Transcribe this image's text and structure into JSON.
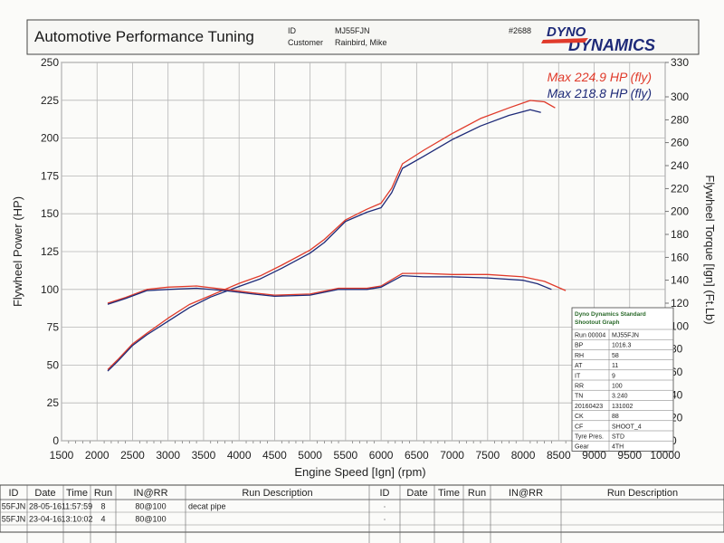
{
  "header": {
    "company": "Automotive Performance Tuning",
    "id_label": "ID",
    "id_value": "MJ55FJN",
    "customer_label": "Customer",
    "customer_value": "Rainbird, Mike",
    "job_number": "#2688",
    "logo_line1": "DYNO",
    "logo_line2": "DYNAMICS"
  },
  "colors": {
    "run_red": "#e03a2a",
    "run_blue": "#1e2a78",
    "grid": "#b6b6b6",
    "paper": "#fbfbf9",
    "table_green": "#2a6a2a"
  },
  "maxima": [
    {
      "text": "Max 224.9 HP (fly)",
      "color": "#e03a2a"
    },
    {
      "text": "Max 218.8 HP (fly)",
      "color": "#1e2a78"
    }
  ],
  "chart_data": {
    "type": "line",
    "title": "",
    "xlabel": "Engine Speed [Ign] (rpm)",
    "ylabel": "Flywheel Power (HP)",
    "y2label": "Flywheel Torque [Ign] (Ft.Lb)",
    "xlim": [
      1500,
      10000
    ],
    "ylim": [
      0,
      250
    ],
    "y2lim": [
      0,
      330
    ],
    "xticks": [
      1500,
      2000,
      2500,
      3000,
      3500,
      4000,
      4500,
      5000,
      5500,
      6000,
      6500,
      7000,
      7500,
      8000,
      8500,
      9000,
      9500,
      10000
    ],
    "yticks": [
      0,
      25,
      50,
      75,
      100,
      125,
      150,
      175,
      200,
      225,
      250
    ],
    "y2ticks": [
      0,
      20,
      40,
      60,
      80,
      100,
      120,
      140,
      160,
      180,
      200,
      220,
      240,
      260,
      280,
      300,
      330
    ],
    "grid": true,
    "series": [
      {
        "color": "#e03a2a",
        "axis": "power",
        "x": [
          2150,
          2300,
          2500,
          2700,
          3000,
          3300,
          3600,
          4000,
          4300,
          4600,
          5000,
          5200,
          5500,
          5800,
          6000,
          6150,
          6300,
          6600,
          7000,
          7400,
          7800,
          8100,
          8300,
          8450
        ],
        "y": [
          47,
          54,
          64,
          71,
          81,
          90,
          96,
          104,
          109,
          116,
          126,
          133,
          146,
          153,
          157,
          167,
          183,
          192,
          203,
          213,
          220,
          224.9,
          224,
          220
        ]
      },
      {
        "color": "#1e2a78",
        "axis": "power",
        "x": [
          2150,
          2300,
          2500,
          2700,
          3000,
          3300,
          3600,
          4000,
          4300,
          4600,
          5000,
          5200,
          5500,
          5800,
          6000,
          6150,
          6300,
          6600,
          7000,
          7400,
          7800,
          8100,
          8250
        ],
        "y": [
          46,
          53,
          63,
          70,
          79,
          88,
          95,
          102,
          107,
          114,
          124,
          131,
          145,
          151,
          154,
          164,
          180,
          188,
          199,
          208,
          215,
          218.8,
          217
        ]
      },
      {
        "color": "#e03a2a",
        "axis": "torque",
        "x": [
          2150,
          2400,
          2700,
          3000,
          3400,
          3800,
          4200,
          4500,
          5000,
          5400,
          5800,
          6000,
          6300,
          6600,
          7000,
          7500,
          8000,
          8300,
          8600
        ],
        "y": [
          120,
          125,
          132,
          134,
          135,
          132,
          129,
          127,
          128,
          133,
          133,
          135,
          146,
          146,
          145,
          145,
          143,
          139,
          131
        ]
      },
      {
        "color": "#1e2a78",
        "axis": "torque",
        "x": [
          2150,
          2400,
          2700,
          3000,
          3400,
          3800,
          4200,
          4500,
          5000,
          5400,
          5800,
          6000,
          6300,
          6600,
          7000,
          7500,
          8000,
          8200,
          8400
        ],
        "y": [
          119,
          124,
          131,
          132,
          133,
          131,
          128,
          126,
          127,
          132,
          132,
          134,
          144,
          143,
          143,
          142,
          140,
          137,
          132
        ]
      }
    ]
  },
  "standard_table": {
    "title_line1": "Dyno Dynamics Standard",
    "title_line2": "Shootout Graph",
    "rows": [
      [
        "Run 00004",
        "MJ55FJN"
      ],
      [
        "BP",
        "1016.3"
      ],
      [
        "RH",
        "58"
      ],
      [
        "AT",
        "11"
      ],
      [
        "IT",
        "9"
      ],
      [
        "RR",
        "100"
      ],
      [
        "TN",
        "3.240"
      ],
      [
        "20160423",
        "131002"
      ],
      [
        "CK",
        "88"
      ],
      [
        "CF",
        "SHOOT_4"
      ],
      [
        "Tyre Pres.",
        "STD"
      ],
      [
        "Gear",
        "4TH"
      ]
    ]
  },
  "run_table": {
    "headers": [
      "ID",
      "Date",
      "Time",
      "Run",
      "IN@RR",
      "Run Description",
      "ID",
      "Date",
      "Time",
      "Run",
      "IN@RR",
      "Run Description"
    ],
    "rows": [
      {
        "id": "55FJN",
        "date": "28-05-16",
        "time": "11:57:59",
        "run": "8",
        "inrr": "80@100",
        "desc": "decat pipe",
        "mark": "·",
        "color": "#e03a2a"
      },
      {
        "id": "55FJN",
        "date": "23-04-16",
        "time": "13:10:02",
        "run": "4",
        "inrr": "80@100",
        "desc": "",
        "mark": "·",
        "color": "#222222"
      }
    ]
  }
}
